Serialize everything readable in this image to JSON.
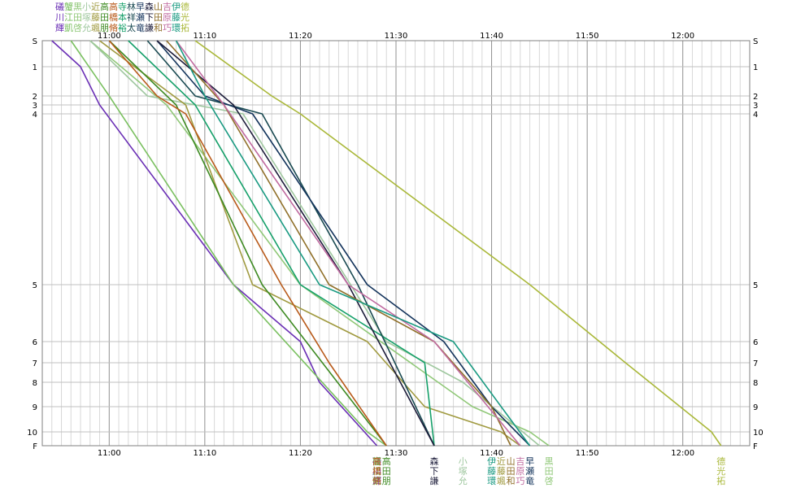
{
  "chart_data": {
    "type": "line",
    "title": "",
    "xlabel": "",
    "ylabel": "",
    "x_unit": "time (HH:MM)",
    "x_ticks": [
      "11:00",
      "11:10",
      "11:20",
      "11:30",
      "11:40",
      "11:50",
      "12:00"
    ],
    "y_ticks": [
      "S",
      "1",
      "2",
      "3",
      "4",
      "5",
      "6",
      "7",
      "8",
      "9",
      "10",
      "F"
    ],
    "y_tick_order": [
      "S",
      "1",
      "2",
      "3",
      "4",
      "5",
      "6",
      "7",
      "8",
      "9",
      "10",
      "F"
    ],
    "y_tick_values": [
      0,
      1,
      2,
      3,
      4,
      5,
      6,
      7,
      8,
      9,
      10,
      11
    ],
    "xlim": [
      "10:53",
      "12:07"
    ],
    "grid": true,
    "legend_position": "top-left",
    "legend_rows": [
      [
        "礒",
        "蟹",
        "黒",
        "小",
        "近",
        "高",
        "高",
        "寺",
        "林",
        "早",
        "森",
        "山",
        "吉",
        "伊",
        "德"
      ],
      [
        "川",
        "江",
        "田",
        "塚",
        "藤",
        "田",
        "橋",
        "本",
        "祥",
        "瀬",
        "下",
        "田",
        "原",
        "藤",
        "光"
      ],
      [
        "輝",
        "凱",
        "啓",
        "允",
        "颯",
        "朋",
        "脩",
        "裕",
        "太",
        "竜",
        "謙",
        "和",
        "巧",
        "環",
        "拓"
      ]
    ],
    "series": [
      {
        "name": "礒川輝",
        "color": "#6a2fb5",
        "points": [
          [
            "10:54",
            0
          ],
          [
            "10:57",
            1
          ],
          [
            "10:59",
            3
          ],
          [
            "11:13",
            5
          ],
          [
            "11:20",
            6
          ],
          [
            "11:22",
            8
          ],
          [
            "11:28",
            11
          ]
        ]
      },
      {
        "name": "蟹江凱",
        "color": "#7ac060",
        "points": [
          [
            "10:56",
            0
          ],
          [
            "11:00",
            2
          ],
          [
            "11:13",
            5
          ],
          [
            "11:27",
            10
          ],
          [
            "11:29",
            11
          ]
        ]
      },
      {
        "name": "黒田啓",
        "color": "#90c878",
        "points": [
          [
            "10:58",
            0
          ],
          [
            "11:06",
            3
          ],
          [
            "11:20",
            5
          ],
          [
            "11:38",
            9
          ],
          [
            "11:44",
            10
          ],
          [
            "11:46",
            11
          ]
        ]
      },
      {
        "name": "小塚允",
        "color": "#a0c8a0",
        "points": [
          [
            "10:58",
            0
          ],
          [
            "11:04",
            2
          ],
          [
            "11:14",
            4
          ],
          [
            "11:29",
            6
          ],
          [
            "11:37",
            8
          ],
          [
            "11:45",
            11
          ]
        ]
      },
      {
        "name": "近藤颯",
        "color": "#a09a40",
        "points": [
          [
            "10:59",
            0
          ],
          [
            "11:08",
            3
          ],
          [
            "11:15",
            5
          ],
          [
            "11:27",
            6
          ],
          [
            "11:33",
            9
          ],
          [
            "11:41",
            10
          ],
          [
            "11:43",
            11
          ]
        ]
      },
      {
        "name": "高田朋",
        "color": "#3e8a22",
        "points": [
          [
            "11:00",
            0
          ],
          [
            "11:07",
            3
          ],
          [
            "11:16",
            5
          ],
          [
            "11:29",
            11
          ]
        ]
      },
      {
        "name": "高橋脩",
        "color": "#b85a1a",
        "points": [
          [
            "11:00",
            0
          ],
          [
            "11:05",
            2
          ],
          [
            "11:08",
            4
          ],
          [
            "11:18",
            5
          ],
          [
            "11:23",
            7
          ],
          [
            "11:29",
            11
          ]
        ]
      },
      {
        "name": "寺本裕",
        "color": "#16a06a",
        "points": [
          [
            "11:02",
            0
          ],
          [
            "11:09",
            3
          ],
          [
            "11:20",
            5
          ],
          [
            "11:33",
            7
          ],
          [
            "11:34",
            11
          ]
        ]
      },
      {
        "name": "林祥太",
        "color": "#1a4a52",
        "points": [
          [
            "11:04",
            0
          ],
          [
            "11:09",
            2
          ],
          [
            "11:16",
            4
          ],
          [
            "11:26",
            5
          ],
          [
            "11:34",
            11
          ]
        ]
      },
      {
        "name": "早瀬竜",
        "color": "#14345c",
        "points": [
          [
            "11:05",
            0
          ],
          [
            "11:10",
            2
          ],
          [
            "11:15",
            4
          ],
          [
            "11:27",
            5
          ],
          [
            "11:35",
            6
          ],
          [
            "11:40",
            9
          ],
          [
            "11:44",
            11
          ]
        ]
      },
      {
        "name": "森下謙",
        "color": "#1c1c3a",
        "points": [
          [
            "11:05",
            0
          ],
          [
            "11:13",
            3
          ],
          [
            "11:25",
            5
          ],
          [
            "11:34",
            11
          ]
        ]
      },
      {
        "name": "山田和",
        "color": "#90702a",
        "points": [
          [
            "11:06",
            0
          ],
          [
            "11:12",
            3
          ],
          [
            "11:23",
            5
          ],
          [
            "11:34",
            6
          ],
          [
            "11:40",
            9
          ],
          [
            "11:42",
            11
          ]
        ]
      },
      {
        "name": "吉原巧",
        "color": "#c06aa0",
        "points": [
          [
            "11:07",
            0
          ],
          [
            "11:12",
            3
          ],
          [
            "11:25",
            5
          ],
          [
            "11:34",
            6
          ],
          [
            "11:43",
            11
          ]
        ]
      },
      {
        "name": "伊藤環",
        "color": "#1a9a82",
        "points": [
          [
            "11:07",
            0
          ],
          [
            "11:10",
            2
          ],
          [
            "11:22",
            5
          ],
          [
            "11:36",
            6
          ],
          [
            "11:44",
            11
          ]
        ]
      },
      {
        "name": "德光拓",
        "color": "#aab83a",
        "points": [
          [
            "11:09",
            0
          ],
          [
            "11:17",
            2
          ],
          [
            "11:20",
            4
          ],
          [
            "11:44",
            5
          ],
          [
            "11:54",
            7
          ],
          [
            "12:03",
            10
          ],
          [
            "12:04",
            11
          ]
        ]
      }
    ],
    "end_labels": [
      {
        "time": "11:28",
        "chars": [
          "礒",
          "川",
          "輝"
        ],
        "color": "#6a2fb5"
      },
      {
        "time": "11:28",
        "chars": [
          "蟹",
          "江",
          "凱"
        ],
        "color": "#7ac060"
      },
      {
        "time": "11:28",
        "chars": [
          "高",
          "橋",
          "脩"
        ],
        "color": "#b85a1a"
      },
      {
        "time": "11:29",
        "chars": [
          "高",
          "田",
          "朋"
        ],
        "color": "#3e8a22"
      },
      {
        "time": "11:34",
        "chars": [
          "森",
          "下",
          "謙"
        ],
        "color": "#1c1c3a"
      },
      {
        "time": "11:37",
        "chars": [
          "小",
          "塚",
          "允"
        ],
        "color": "#a0c8a0"
      },
      {
        "time": "11:40",
        "chars": [
          "伊",
          "藤",
          "環"
        ],
        "color": "#1a9a82"
      },
      {
        "time": "11:41",
        "chars": [
          "近",
          "藤",
          "颯"
        ],
        "color": "#a09a40"
      },
      {
        "time": "11:42",
        "chars": [
          "山",
          "田",
          "和"
        ],
        "color": "#90702a"
      },
      {
        "time": "11:43",
        "chars": [
          "吉",
          "原",
          "巧"
        ],
        "color": "#c06aa0"
      },
      {
        "time": "11:44",
        "chars": [
          "早",
          "瀬",
          "竜"
        ],
        "color": "#14345c"
      },
      {
        "time": "11:46",
        "chars": [
          "黒",
          "田",
          "啓"
        ],
        "color": "#90c878"
      },
      {
        "time": "12:04",
        "chars": [
          "德",
          "光",
          "拓"
        ],
        "color": "#aab83a"
      }
    ]
  }
}
